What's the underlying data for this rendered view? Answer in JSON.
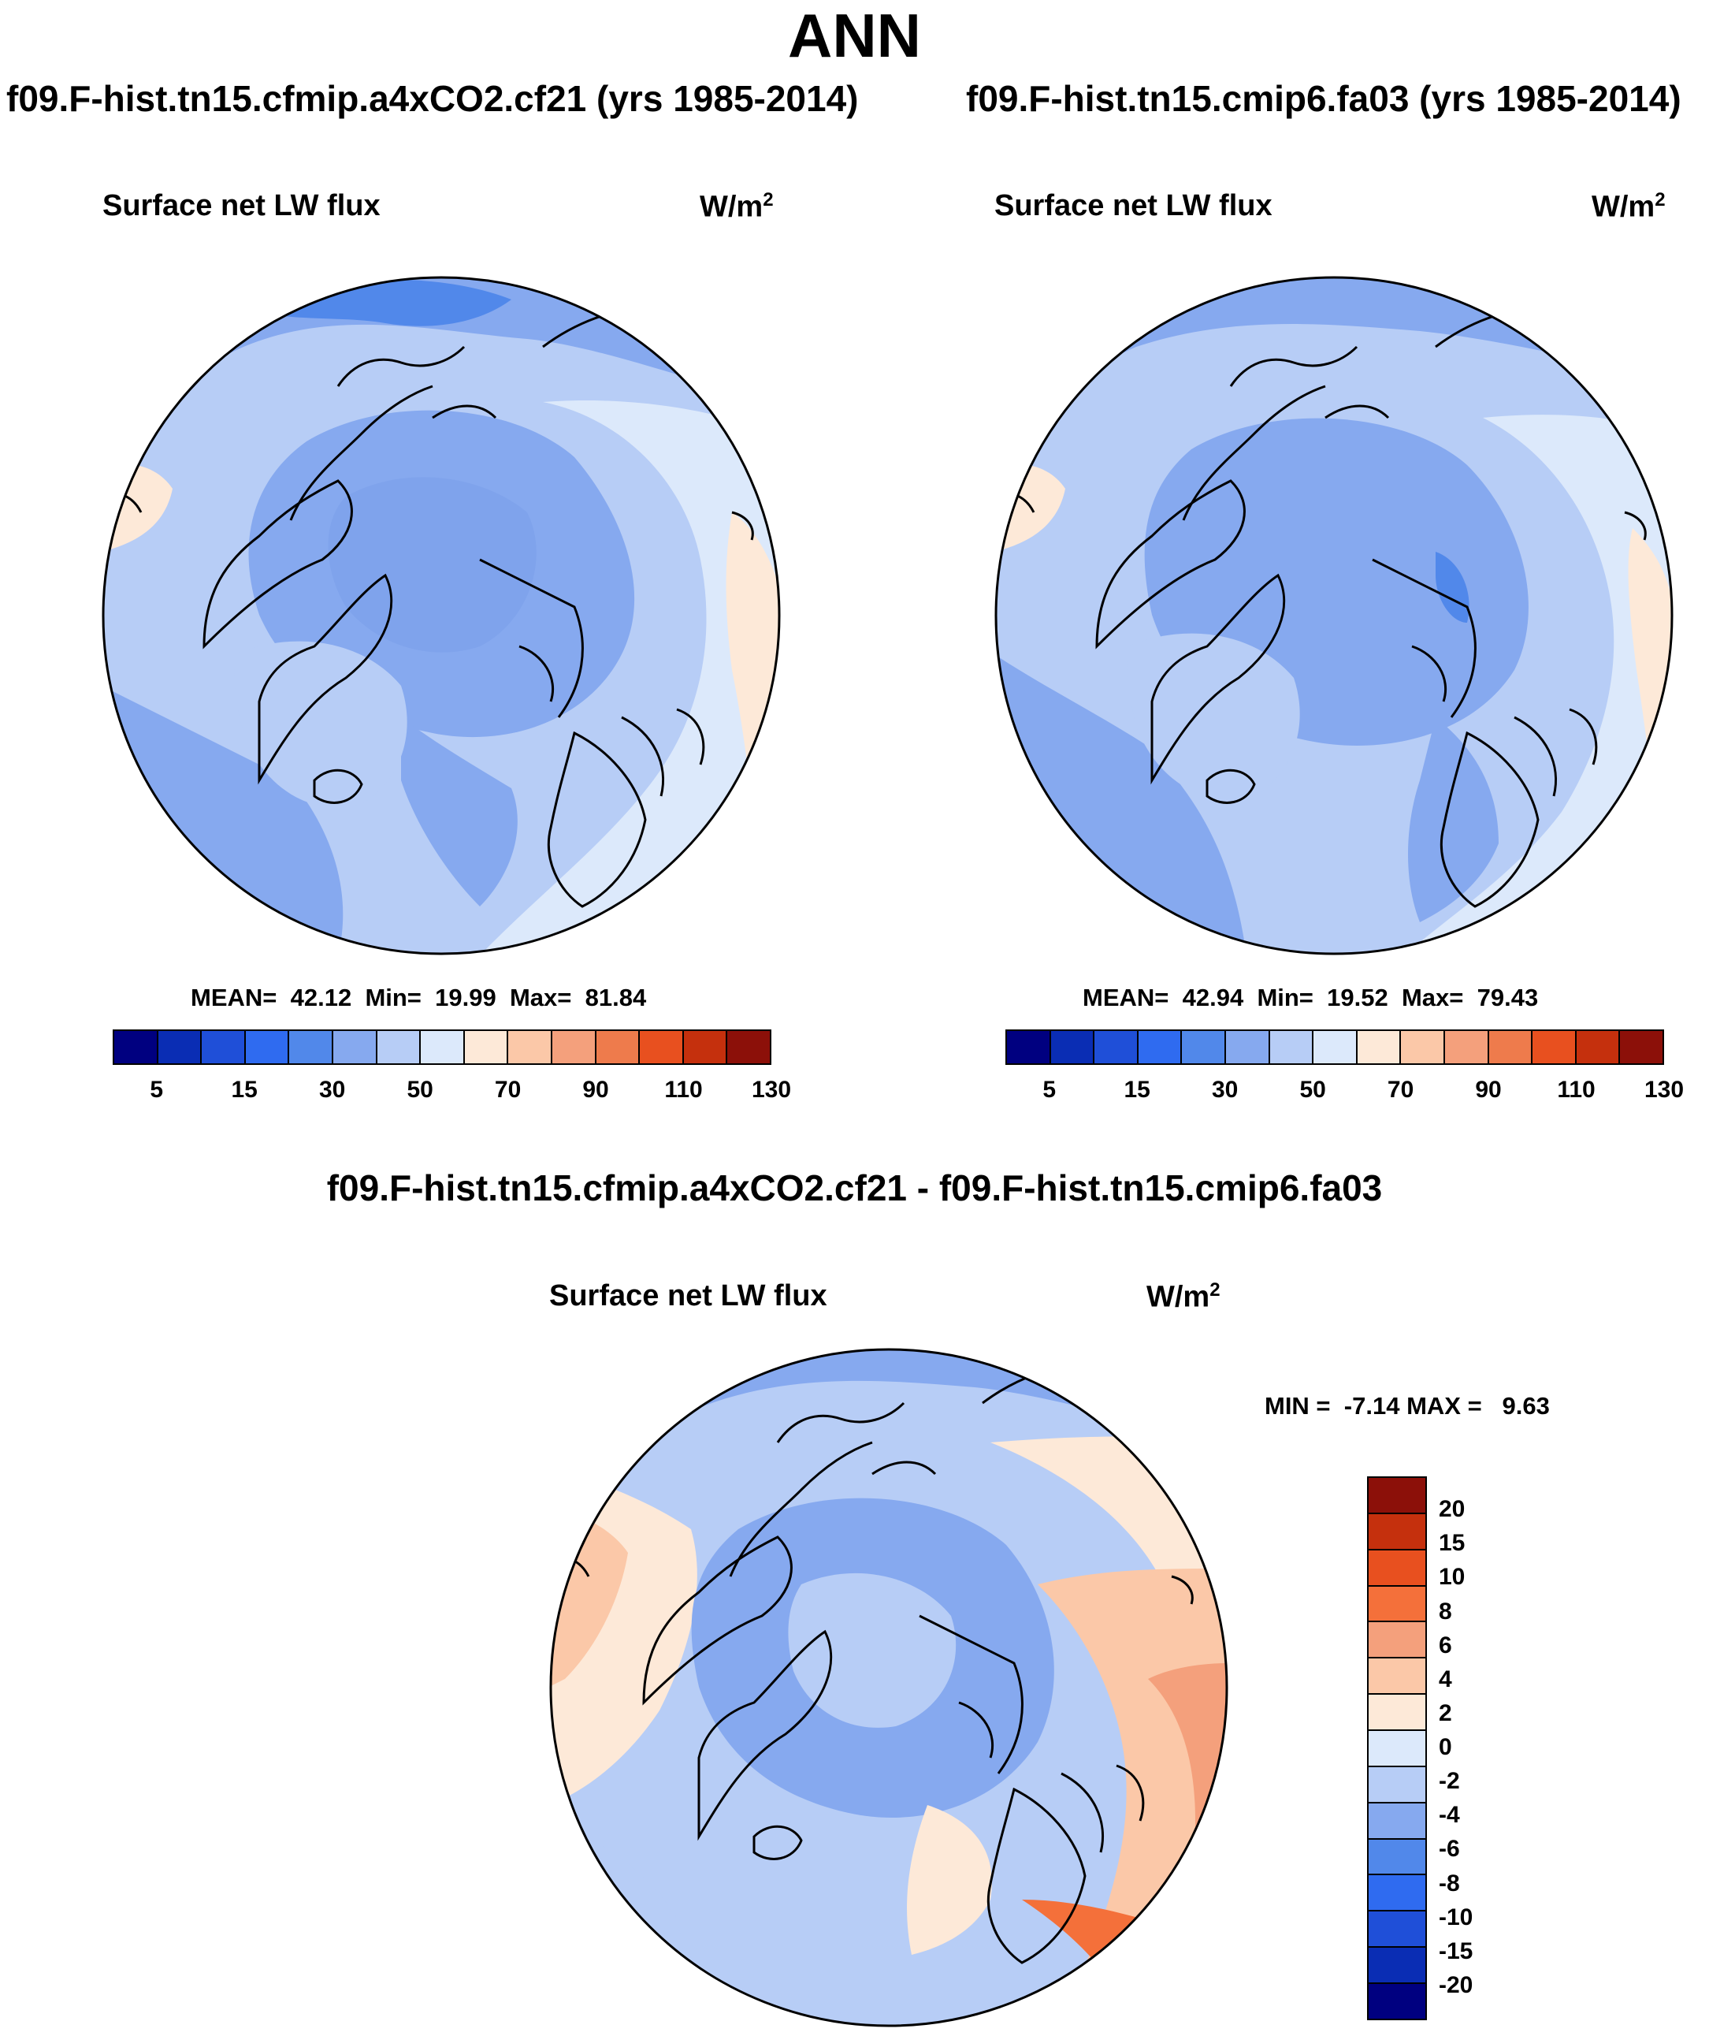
{
  "title": "ANN",
  "left_panel": {
    "case_title": "f09.F-hist.tn15.cfmip.a4xCO2.cf21 (yrs 1985-2014)",
    "variable": "Surface net LW flux",
    "units_base": "W/m",
    "units_exp": "2",
    "stats": {
      "mean_label": "MEAN=",
      "mean": "42.12",
      "min_label": "Min=",
      "min": "19.99",
      "max_label": "Max=",
      "max": "81.84"
    }
  },
  "right_panel": {
    "case_title": "f09.F-hist.tn15.cmip6.fa03 (yrs 1985-2014)",
    "variable": "Surface net LW flux",
    "units_base": "W/m",
    "units_exp": "2",
    "stats": {
      "mean_label": "MEAN=",
      "mean": "42.94",
      "min_label": "Min=",
      "min": "19.52",
      "max_label": "Max=",
      "max": "79.43"
    }
  },
  "diff_panel": {
    "case_title": "f09.F-hist.tn15.cfmip.a4xCO2.cf21 - f09.F-hist.tn15.cmip6.fa03",
    "variable": "Surface net LW flux",
    "units_base": "W/m",
    "units_exp": "2",
    "stats": {
      "min_label": "MIN =",
      "min": "-7.14",
      "max_label": "MAX =",
      "max": "9.63"
    }
  },
  "colorbars": {
    "abs_colors": [
      "#000080",
      "#0a2db4",
      "#1f4fd8",
      "#2f6bf0",
      "#5188ea",
      "#86a9ef",
      "#b7cdf6",
      "#dce9fb",
      "#fde9d8",
      "#fbc8a8",
      "#f4a07c",
      "#ee7b4c",
      "#e8501f",
      "#c5300d",
      "#8c1009"
    ],
    "abs_ticks": [
      "5",
      "15",
      "30",
      "50",
      "70",
      "90",
      "110",
      "130"
    ],
    "diff_colors": [
      "#8c1009",
      "#c5300d",
      "#e8501f",
      "#f4703a",
      "#f4a07c",
      "#fbc8a8",
      "#fde9d8",
      "#dce9fb",
      "#b7cdf6",
      "#86a9ef",
      "#5188ea",
      "#2f6bf0",
      "#1f4fd8",
      "#0a2db4",
      "#000080"
    ],
    "diff_ticks": [
      "20",
      "15",
      "10",
      "8",
      "6",
      "4",
      "2",
      "0",
      "-2",
      "-4",
      "-6",
      "-8",
      "-10",
      "-15",
      "-20"
    ]
  },
  "chart_data": [
    {
      "type": "heatmap",
      "title": "f09.F-hist.tn15.cfmip.a4xCO2.cf21 (yrs 1985-2014)",
      "subtitle": "Surface net LW flux",
      "units": "W/m2",
      "projection": "north polar stereographic",
      "levels": [
        5,
        10,
        15,
        20,
        30,
        40,
        50,
        60,
        70,
        80,
        90,
        100,
        110,
        120,
        130
      ],
      "mean": 42.12,
      "min": 19.99,
      "max": 81.84
    },
    {
      "type": "heatmap",
      "title": "f09.F-hist.tn15.cmip6.fa03 (yrs 1985-2014)",
      "subtitle": "Surface net LW flux",
      "units": "W/m2",
      "projection": "north polar stereographic",
      "levels": [
        5,
        10,
        15,
        20,
        30,
        40,
        50,
        60,
        70,
        80,
        90,
        100,
        110,
        120,
        130
      ],
      "mean": 42.94,
      "min": 19.52,
      "max": 79.43
    },
    {
      "type": "heatmap",
      "title": "f09.F-hist.tn15.cfmip.a4xCO2.cf21 - f09.F-hist.tn15.cmip6.fa03",
      "subtitle": "Surface net LW flux",
      "units": "W/m2",
      "projection": "north polar stereographic",
      "levels": [
        -20,
        -15,
        -10,
        -8,
        -6,
        -4,
        -2,
        0,
        2,
        4,
        6,
        8,
        10,
        15,
        20
      ],
      "min": -7.14,
      "max": 9.63
    }
  ]
}
